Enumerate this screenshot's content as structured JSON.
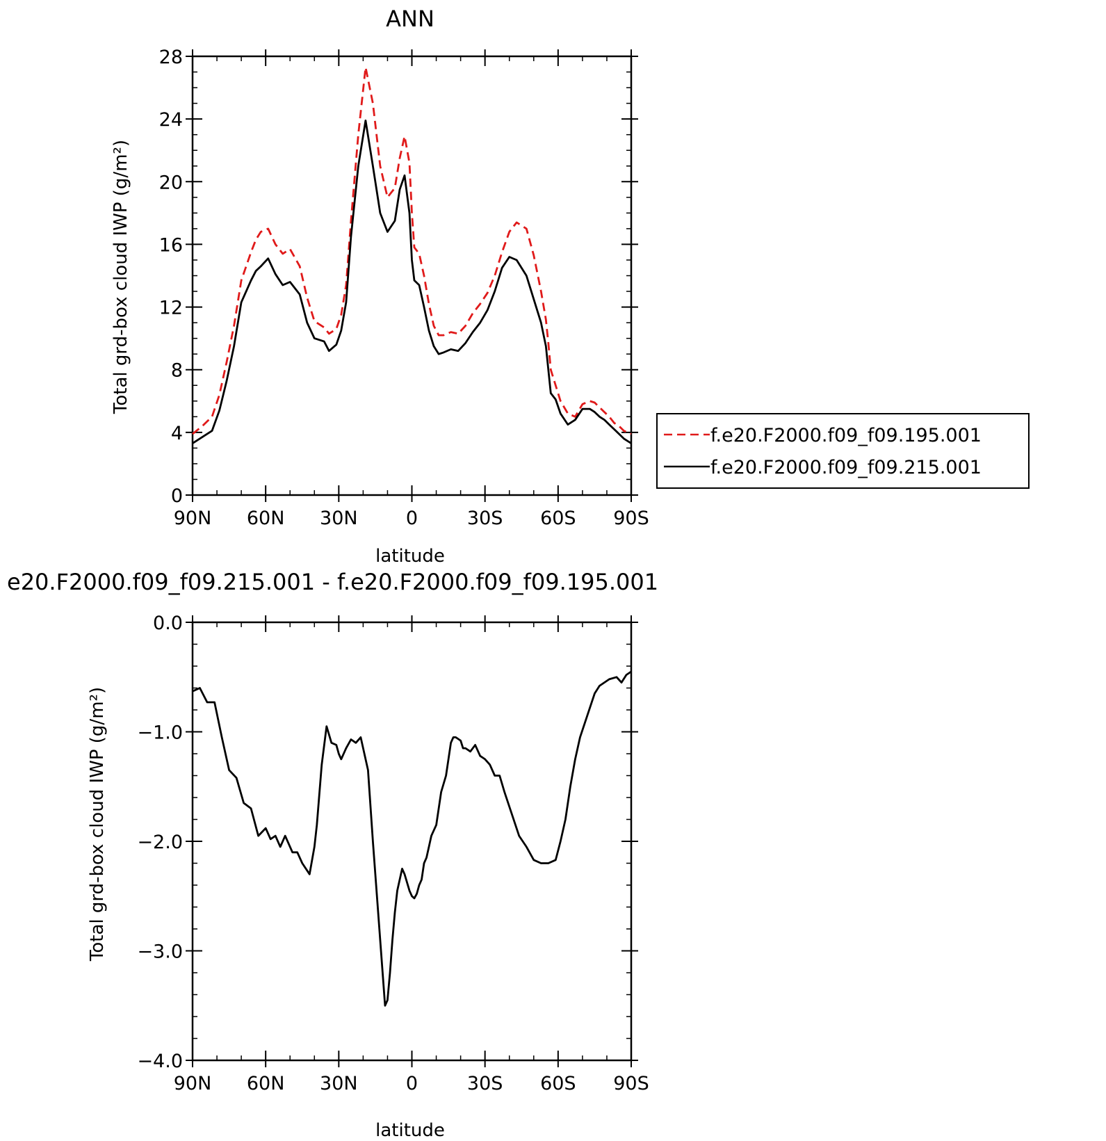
{
  "chart_data": [
    {
      "type": "line",
      "title": "ANN",
      "xlabel": "latitude",
      "ylabel": "Total grd-box cloud IWP (g/m²)",
      "x_tick_labels": [
        "90N",
        "60N",
        "30N",
        "0",
        "30S",
        "60S",
        "90S"
      ],
      "x_tick_values": [
        90,
        60,
        30,
        0,
        -30,
        -60,
        -90
      ],
      "xlim": [
        90,
        -90
      ],
      "ylim": [
        0,
        28
      ],
      "y_ticks": [
        0,
        4,
        8,
        12,
        16,
        20,
        24,
        28
      ],
      "y_tick_labels": [
        "0",
        "4",
        "8",
        "12",
        "16",
        "20",
        "24",
        "28"
      ],
      "legend_position": "right",
      "x": [
        90,
        86,
        82,
        79,
        76,
        73,
        70,
        66,
        64,
        62,
        59,
        56,
        53,
        50,
        46,
        43,
        40,
        36,
        34,
        31,
        29,
        27,
        25,
        22,
        19,
        16,
        13,
        10,
        7,
        5,
        3,
        1,
        0,
        -1,
        -3,
        -5,
        -7,
        -9,
        -11,
        -13,
        -16,
        -19,
        -22,
        -25,
        -28,
        -31,
        -34,
        -37,
        -40,
        -43,
        -47,
        -50,
        -53,
        -55,
        -56,
        -57,
        -59,
        -61,
        -64,
        -67,
        -70,
        -73,
        -75,
        -77,
        -79,
        -81,
        -83,
        -85,
        -87,
        -90
      ],
      "series": [
        {
          "name": "f.e20.F2000.f09_f09.195.001",
          "color": "#e01a1a",
          "dash": "dashed",
          "values": [
            3.9,
            4.4,
            5.0,
            6.4,
            8.5,
            10.8,
            13.7,
            15.5,
            16.3,
            16.8,
            17.0,
            16.0,
            15.4,
            15.7,
            14.6,
            12.6,
            11.1,
            10.7,
            10.3,
            10.6,
            11.5,
            13.4,
            17.5,
            23.0,
            27.3,
            25.0,
            21.0,
            19.0,
            19.6,
            21.5,
            22.9,
            21.2,
            18.0,
            15.8,
            15.4,
            14.0,
            12.2,
            10.8,
            10.2,
            10.2,
            10.4,
            10.3,
            10.8,
            11.6,
            12.2,
            12.9,
            14.0,
            15.5,
            16.8,
            17.4,
            17.0,
            15.3,
            13.0,
            11.2,
            9.7,
            8.0,
            7.0,
            6.0,
            5.2,
            5.0,
            5.8,
            6.0,
            5.9,
            5.6,
            5.3,
            5.0,
            4.6,
            4.4,
            4.1,
            3.9
          ]
        },
        {
          "name": "f.e20.F2000.f09_f09.215.001",
          "color": "#000000",
          "dash": "solid",
          "values": [
            3.3,
            3.7,
            4.1,
            5.4,
            7.3,
            9.5,
            12.3,
            13.7,
            14.3,
            14.6,
            15.1,
            14.1,
            13.4,
            13.6,
            12.8,
            11.0,
            10.0,
            9.8,
            9.2,
            9.6,
            10.5,
            12.3,
            16.5,
            21.0,
            23.9,
            21.0,
            18.0,
            16.8,
            17.5,
            19.5,
            20.4,
            18.0,
            15.0,
            13.7,
            13.4,
            12.0,
            10.5,
            9.5,
            9.0,
            9.1,
            9.3,
            9.2,
            9.7,
            10.4,
            11.0,
            11.8,
            13.0,
            14.5,
            15.2,
            15.0,
            14.0,
            12.5,
            11.0,
            9.5,
            8.0,
            6.5,
            6.1,
            5.2,
            4.5,
            4.8,
            5.5,
            5.5,
            5.3,
            5.0,
            4.8,
            4.5,
            4.2,
            3.9,
            3.6,
            3.3
          ]
        }
      ]
    },
    {
      "type": "line",
      "title": "e20.F2000.f09_f09.215.001 - f.e20.F2000.f09_f09.195.001",
      "xlabel": "latitude",
      "ylabel": "Total grd-box cloud IWP (g/m²)",
      "x_tick_labels": [
        "90N",
        "60N",
        "30N",
        "0",
        "30S",
        "60S",
        "90S"
      ],
      "x_tick_values": [
        90,
        60,
        30,
        0,
        -30,
        -60,
        -90
      ],
      "xlim": [
        90,
        -90
      ],
      "ylim": [
        -4.0,
        0.0
      ],
      "y_ticks": [
        -4.0,
        -3.0,
        -2.0,
        -1.0,
        0.0
      ],
      "y_tick_labels": [
        "−4.0",
        "−3.0",
        "−2.0",
        "−1.0",
        "0.0"
      ],
      "x": [
        90,
        87,
        84,
        81,
        78,
        75,
        72,
        69,
        66,
        63,
        60,
        58,
        56,
        54,
        52,
        49,
        47,
        45,
        42,
        40,
        39,
        37,
        35,
        33,
        31,
        30,
        29,
        27,
        25,
        23,
        21,
        18,
        16,
        14,
        12,
        11,
        10,
        9,
        8,
        7,
        6,
        5,
        4,
        3,
        1,
        0,
        -1,
        -2,
        -3,
        -4,
        -5,
        -6,
        -7,
        -8,
        -10,
        -12,
        -14,
        -15,
        -16,
        -17,
        -18,
        -20,
        -21,
        -22,
        -24,
        -26,
        -28,
        -30,
        -32,
        -34,
        -36,
        -38,
        -41,
        -44,
        -47,
        -50,
        -53,
        -56,
        -59,
        -61,
        -63,
        -65,
        -67,
        -69,
        -72,
        -75,
        -77,
        -79,
        -81,
        -84,
        -86,
        -88,
        -90
      ],
      "series": [
        {
          "name": "",
          "color": "#000000",
          "dash": "solid",
          "values": [
            -0.63,
            -0.6,
            -0.73,
            -0.73,
            -1.05,
            -1.35,
            -1.42,
            -1.65,
            -1.7,
            -1.95,
            -1.88,
            -1.98,
            -1.95,
            -2.05,
            -1.95,
            -2.1,
            -2.1,
            -2.2,
            -2.3,
            -2.05,
            -1.85,
            -1.3,
            -0.95,
            -1.1,
            -1.12,
            -1.2,
            -1.25,
            -1.15,
            -1.07,
            -1.1,
            -1.05,
            -1.35,
            -2.0,
            -2.6,
            -3.2,
            -3.5,
            -3.45,
            -3.2,
            -2.9,
            -2.65,
            -2.45,
            -2.35,
            -2.25,
            -2.3,
            -2.45,
            -2.5,
            -2.52,
            -2.48,
            -2.4,
            -2.35,
            -2.2,
            -2.15,
            -2.05,
            -1.95,
            -1.85,
            -1.55,
            -1.4,
            -1.25,
            -1.1,
            -1.05,
            -1.05,
            -1.08,
            -1.15,
            -1.15,
            -1.18,
            -1.12,
            -1.22,
            -1.25,
            -1.3,
            -1.4,
            -1.4,
            -1.55,
            -1.75,
            -1.95,
            -2.05,
            -2.17,
            -2.2,
            -2.2,
            -2.17,
            -2.0,
            -1.8,
            -1.5,
            -1.25,
            -1.05,
            -0.85,
            -0.65,
            -0.58,
            -0.55,
            -0.52,
            -0.5,
            -0.55,
            -0.48,
            -0.45
          ]
        }
      ]
    }
  ]
}
